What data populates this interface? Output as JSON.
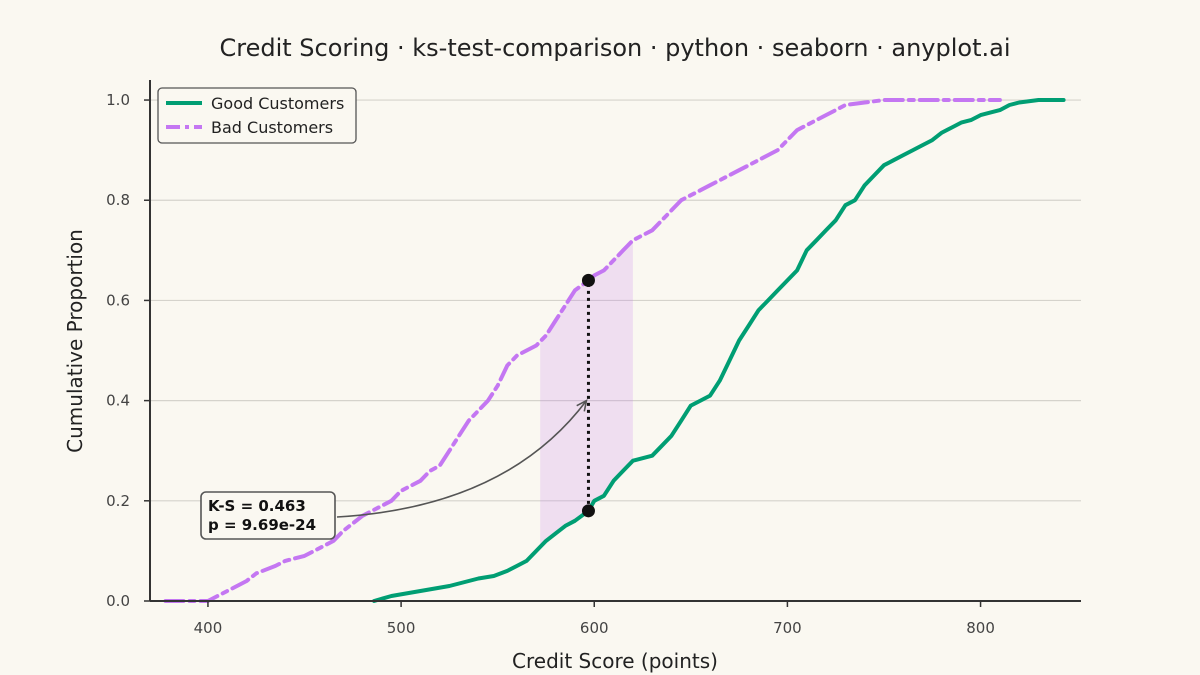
{
  "chart_data": {
    "type": "line",
    "title": "Credit Scoring · ks-test-comparison · python · seaborn · anyplot.ai",
    "xlabel": "Credit Score (points)",
    "ylabel": "Cumulative Proportion",
    "xlim": [
      370,
      852
    ],
    "ylim": [
      0,
      1.04
    ],
    "xticks": [
      400,
      500,
      600,
      700,
      800
    ],
    "yticks": [
      0.0,
      0.2,
      0.4,
      0.6,
      0.8,
      1.0
    ],
    "ytick_labels": [
      "0.0",
      "0.2",
      "0.4",
      "0.6",
      "0.8",
      "1.0"
    ],
    "grid": "horizontal",
    "legend_position": "top-left",
    "series": [
      {
        "name": "Good Customers",
        "color": "#009E73",
        "style": "solid",
        "points": [
          [
            486,
            0
          ],
          [
            495,
            0.01
          ],
          [
            510,
            0.02
          ],
          [
            525,
            0.03
          ],
          [
            540,
            0.045
          ],
          [
            548,
            0.05
          ],
          [
            555,
            0.06
          ],
          [
            560,
            0.07
          ],
          [
            565,
            0.08
          ],
          [
            570,
            0.1
          ],
          [
            575,
            0.12
          ],
          [
            580,
            0.135
          ],
          [
            585,
            0.15
          ],
          [
            590,
            0.16
          ],
          [
            597,
            0.18
          ],
          [
            600,
            0.2
          ],
          [
            605,
            0.21
          ],
          [
            610,
            0.24
          ],
          [
            615,
            0.26
          ],
          [
            620,
            0.28
          ],
          [
            630,
            0.29
          ],
          [
            635,
            0.31
          ],
          [
            640,
            0.33
          ],
          [
            645,
            0.36
          ],
          [
            650,
            0.39
          ],
          [
            655,
            0.4
          ],
          [
            660,
            0.41
          ],
          [
            665,
            0.44
          ],
          [
            670,
            0.48
          ],
          [
            675,
            0.52
          ],
          [
            680,
            0.55
          ],
          [
            685,
            0.58
          ],
          [
            690,
            0.6
          ],
          [
            695,
            0.62
          ],
          [
            700,
            0.64
          ],
          [
            705,
            0.66
          ],
          [
            710,
            0.7
          ],
          [
            715,
            0.72
          ],
          [
            720,
            0.74
          ],
          [
            725,
            0.76
          ],
          [
            730,
            0.79
          ],
          [
            735,
            0.8
          ],
          [
            740,
            0.83
          ],
          [
            745,
            0.85
          ],
          [
            750,
            0.87
          ],
          [
            755,
            0.88
          ],
          [
            760,
            0.89
          ],
          [
            765,
            0.9
          ],
          [
            770,
            0.91
          ],
          [
            775,
            0.92
          ],
          [
            780,
            0.935
          ],
          [
            785,
            0.945
          ],
          [
            790,
            0.955
          ],
          [
            795,
            0.96
          ],
          [
            800,
            0.97
          ],
          [
            805,
            0.975
          ],
          [
            810,
            0.98
          ],
          [
            815,
            0.99
          ],
          [
            820,
            0.995
          ],
          [
            830,
            1.0
          ],
          [
            843,
            1.0
          ]
        ]
      },
      {
        "name": "Bad Customers",
        "color": "#C477F2",
        "style": "dashed",
        "points": [
          [
            378,
            0
          ],
          [
            400,
            0
          ],
          [
            405,
            0.01
          ],
          [
            410,
            0.02
          ],
          [
            420,
            0.04
          ],
          [
            425,
            0.055
          ],
          [
            435,
            0.07
          ],
          [
            440,
            0.08
          ],
          [
            450,
            0.09
          ],
          [
            455,
            0.1
          ],
          [
            465,
            0.12
          ],
          [
            470,
            0.14
          ],
          [
            475,
            0.155
          ],
          [
            480,
            0.17
          ],
          [
            490,
            0.19
          ],
          [
            495,
            0.2
          ],
          [
            500,
            0.22
          ],
          [
            505,
            0.23
          ],
          [
            510,
            0.24
          ],
          [
            515,
            0.26
          ],
          [
            520,
            0.27
          ],
          [
            525,
            0.3
          ],
          [
            530,
            0.33
          ],
          [
            535,
            0.36
          ],
          [
            540,
            0.38
          ],
          [
            545,
            0.4
          ],
          [
            550,
            0.43
          ],
          [
            555,
            0.47
          ],
          [
            560,
            0.49
          ],
          [
            565,
            0.5
          ],
          [
            570,
            0.51
          ],
          [
            575,
            0.53
          ],
          [
            580,
            0.56
          ],
          [
            585,
            0.59
          ],
          [
            590,
            0.62
          ],
          [
            597,
            0.64
          ],
          [
            600,
            0.65
          ],
          [
            605,
            0.66
          ],
          [
            610,
            0.68
          ],
          [
            615,
            0.7
          ],
          [
            620,
            0.72
          ],
          [
            625,
            0.73
          ],
          [
            630,
            0.74
          ],
          [
            635,
            0.76
          ],
          [
            640,
            0.78
          ],
          [
            645,
            0.8
          ],
          [
            650,
            0.81
          ],
          [
            655,
            0.82
          ],
          [
            660,
            0.83
          ],
          [
            665,
            0.84
          ],
          [
            670,
            0.85
          ],
          [
            675,
            0.86
          ],
          [
            680,
            0.87
          ],
          [
            685,
            0.88
          ],
          [
            690,
            0.89
          ],
          [
            695,
            0.9
          ],
          [
            700,
            0.92
          ],
          [
            705,
            0.94
          ],
          [
            710,
            0.95
          ],
          [
            715,
            0.96
          ],
          [
            720,
            0.97
          ],
          [
            725,
            0.98
          ],
          [
            730,
            0.99
          ],
          [
            740,
            0.995
          ],
          [
            750,
            1.0
          ],
          [
            800,
            1.0
          ],
          [
            810,
            1.0
          ]
        ]
      }
    ],
    "ks_band": {
      "x_from": 572,
      "x_to": 620
    },
    "ks_line": {
      "x": 597,
      "y_low": 0.18,
      "y_high": 0.64
    },
    "annotation": {
      "lines": [
        "K-S = 0.463",
        "p = 9.69e-24"
      ],
      "arrow_target": {
        "x": 597,
        "y": 0.4
      }
    }
  }
}
